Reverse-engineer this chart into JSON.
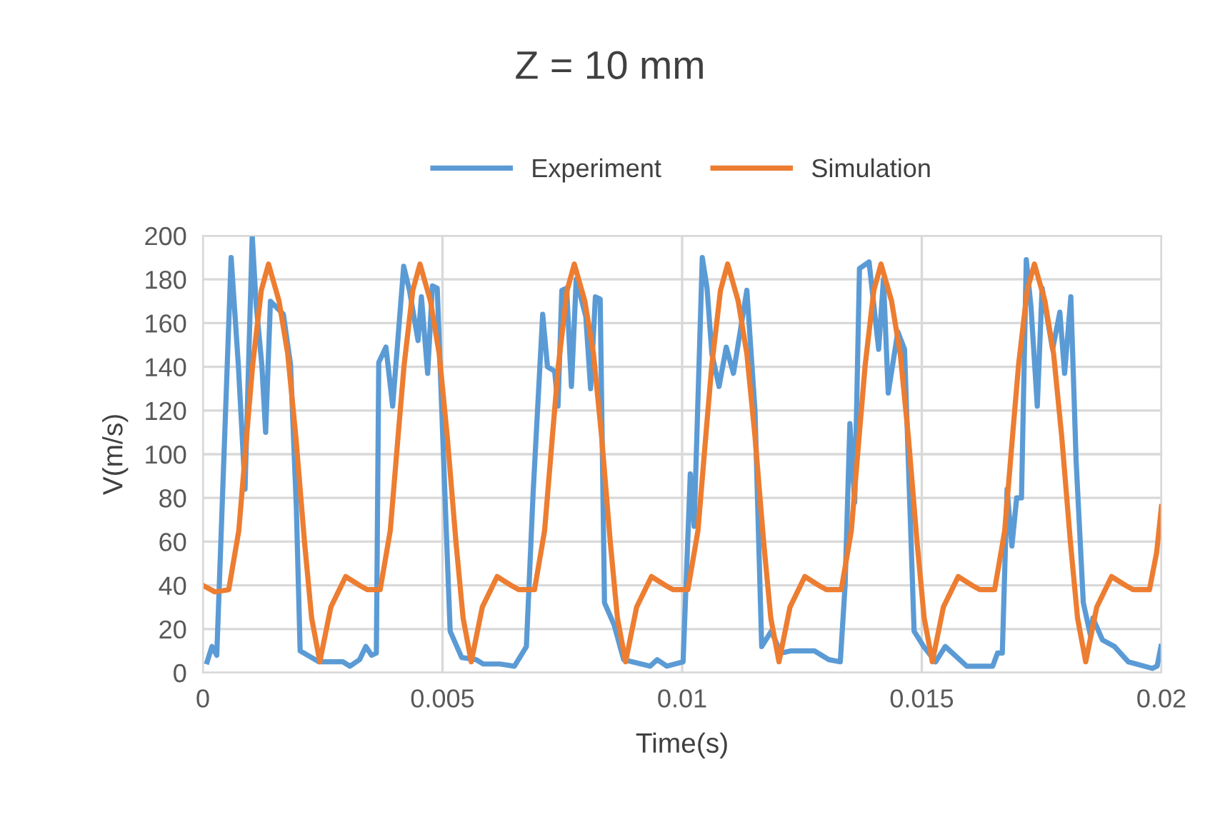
{
  "chart_data": {
    "type": "line",
    "title": "Z = 10 mm",
    "xlabel": "Time(s)",
    "ylabel": "V(m/s)",
    "xlim": [
      0,
      0.02
    ],
    "xticks": [
      0,
      0.005,
      0.01,
      0.015,
      0.02
    ],
    "ylim": [
      0,
      200
    ],
    "yticks": [
      0,
      20,
      40,
      60,
      80,
      100,
      120,
      140,
      160,
      180,
      200
    ],
    "grid": true,
    "legend": "top",
    "marker": "none",
    "line_style": "solid",
    "series": [
      {
        "name": "Experiment",
        "color": "#5b9bd5",
        "x": [
          9e-05,
          0.00019,
          0.00029,
          0.00059,
          0.00074,
          0.00088,
          0.00103,
          0.00111,
          0.00123,
          0.00131,
          0.00141,
          0.00168,
          0.00183,
          0.00195,
          0.00203,
          0.00242,
          0.00292,
          0.00307,
          0.00327,
          0.0034,
          0.00352,
          0.00362,
          0.00367,
          0.00382,
          0.00396,
          0.00419,
          0.00431,
          0.00449,
          0.00456,
          0.00469,
          0.00479,
          0.00489,
          0.00506,
          0.00516,
          0.0054,
          0.0057,
          0.00585,
          0.0062,
          0.0065,
          0.00675,
          0.00689,
          0.00709,
          0.00719,
          0.00734,
          0.00741,
          0.00749,
          0.00759,
          0.00769,
          0.00779,
          0.00799,
          0.00809,
          0.00819,
          0.00829,
          0.00838,
          0.00858,
          0.00878,
          0.00933,
          0.00948,
          0.00968,
          0.01002,
          0.01017,
          0.01025,
          0.01042,
          0.01052,
          0.01062,
          0.01077,
          0.01092,
          0.01107,
          0.01135,
          0.01152,
          0.01166,
          0.01186,
          0.01206,
          0.01226,
          0.01276,
          0.01306,
          0.0133,
          0.0134,
          0.0135,
          0.0136,
          0.0137,
          0.0139,
          0.0141,
          0.0142,
          0.0143,
          0.0145,
          0.01464,
          0.01484,
          0.01504,
          0.01529,
          0.01549,
          0.01594,
          0.01633,
          0.01648,
          0.01658,
          0.01668,
          0.01678,
          0.01688,
          0.01698,
          0.01708,
          0.01718,
          0.01728,
          0.01741,
          0.01751,
          0.01773,
          0.01788,
          0.01798,
          0.01811,
          0.01822,
          0.01837,
          0.01852,
          0.01857,
          0.01877,
          0.01902,
          0.01931,
          0.01981,
          0.01991,
          0.01999
        ],
        "values": [
          5,
          12,
          8,
          190,
          141,
          84,
          200,
          169,
          141,
          110,
          170,
          164,
          141,
          76,
          10,
          5,
          5,
          3,
          6,
          12,
          8,
          9,
          142,
          149,
          122,
          186,
          175,
          152,
          172,
          137,
          177,
          176,
          76,
          19,
          7,
          6,
          4,
          4,
          3,
          12,
          82,
          164,
          140,
          138,
          122,
          175,
          176,
          131,
          180,
          163,
          130,
          172,
          171,
          32,
          22,
          6,
          3,
          6,
          3,
          5,
          91,
          67,
          190,
          176,
          146,
          131,
          149,
          137,
          175,
          120,
          12,
          19,
          9,
          10,
          10,
          6,
          5,
          40,
          114,
          78,
          185,
          188,
          148,
          180,
          128,
          156,
          148,
          19,
          12,
          5,
          12,
          3,
          3,
          3,
          9,
          9,
          84,
          58,
          80,
          80,
          189,
          167,
          122,
          176,
          148,
          165,
          137,
          172,
          97,
          32,
          17,
          25,
          15,
          12,
          5,
          2,
          3,
          12
        ]
      },
      {
        "name": "Simulation",
        "color": "#ed7d31",
        "x": [
          0,
          0.00025,
          0.00054,
          0.00075,
          0.00092,
          0.00104,
          0.00122,
          0.00137,
          0.00159,
          0.00177,
          0.00194,
          0.00212,
          0.00227,
          0.00244,
          0.00267,
          0.00298,
          0.00327,
          0.00343,
          0.0037,
          0.00391,
          0.00408,
          0.0042,
          0.00438,
          0.00453,
          0.00475,
          0.00493,
          0.0051,
          0.00528,
          0.00543,
          0.0056,
          0.00583,
          0.00614,
          0.00643,
          0.00659,
          0.00692,
          0.00713,
          0.0073,
          0.00742,
          0.0076,
          0.00775,
          0.00797,
          0.00815,
          0.00832,
          0.0085,
          0.00865,
          0.00882,
          0.00905,
          0.00936,
          0.00965,
          0.00981,
          0.01012,
          0.01033,
          0.0105,
          0.01062,
          0.0108,
          0.01095,
          0.01117,
          0.01135,
          0.01152,
          0.0117,
          0.01185,
          0.01202,
          0.01225,
          0.01256,
          0.01285,
          0.01301,
          0.01332,
          0.01353,
          0.0137,
          0.01382,
          0.014,
          0.01415,
          0.01437,
          0.01455,
          0.01472,
          0.0149,
          0.01505,
          0.01522,
          0.01545,
          0.01576,
          0.01605,
          0.01621,
          0.01652,
          0.01673,
          0.0169,
          0.01702,
          0.0172,
          0.01735,
          0.01757,
          0.01775,
          0.01792,
          0.0181,
          0.01825,
          0.01842,
          0.01865,
          0.01896,
          0.01925,
          0.01941,
          0.01975,
          0.0199,
          0.02
        ],
        "values": [
          40,
          37,
          38,
          65,
          110,
          141,
          175,
          187,
          170,
          146,
          108,
          60,
          25,
          5,
          30,
          44,
          40,
          38,
          38,
          65,
          110,
          141,
          175,
          187,
          170,
          146,
          108,
          60,
          25,
          5,
          30,
          44,
          40,
          38,
          38,
          65,
          110,
          141,
          175,
          187,
          170,
          146,
          108,
          60,
          25,
          5,
          30,
          44,
          40,
          38,
          38,
          65,
          110,
          141,
          175,
          187,
          170,
          146,
          108,
          60,
          25,
          5,
          30,
          44,
          40,
          38,
          38,
          65,
          110,
          141,
          175,
          187,
          170,
          146,
          108,
          60,
          25,
          5,
          30,
          44,
          40,
          38,
          38,
          65,
          110,
          141,
          175,
          187,
          170,
          146,
          108,
          60,
          25,
          5,
          30,
          44,
          40,
          38,
          38,
          55,
          76
        ]
      }
    ]
  }
}
